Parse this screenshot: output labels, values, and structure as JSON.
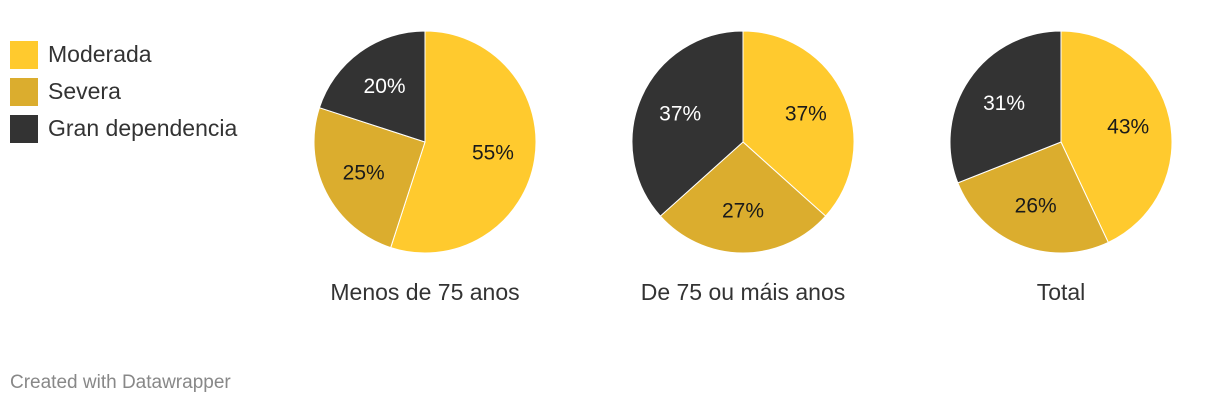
{
  "legend": [
    {
      "label": "Moderada",
      "color": "#ffca2e"
    },
    {
      "label": "Severa",
      "color": "#dbad2e"
    },
    {
      "label": "Gran dependencia",
      "color": "#333333"
    }
  ],
  "footer": "Created with Datawrapper",
  "chart_data": {
    "type": "pie",
    "categories": [
      "Moderada",
      "Severa",
      "Gran dependencia"
    ],
    "colors": [
      "#ffca2e",
      "#dbad2e",
      "#333333"
    ],
    "pies": [
      {
        "label": "Menos de 75 anos",
        "values": [
          55,
          25,
          20
        ]
      },
      {
        "label": "De 75 ou máis anos",
        "values": [
          37,
          27,
          37
        ]
      },
      {
        "label": "Total",
        "values": [
          43,
          26,
          31
        ]
      }
    ]
  }
}
